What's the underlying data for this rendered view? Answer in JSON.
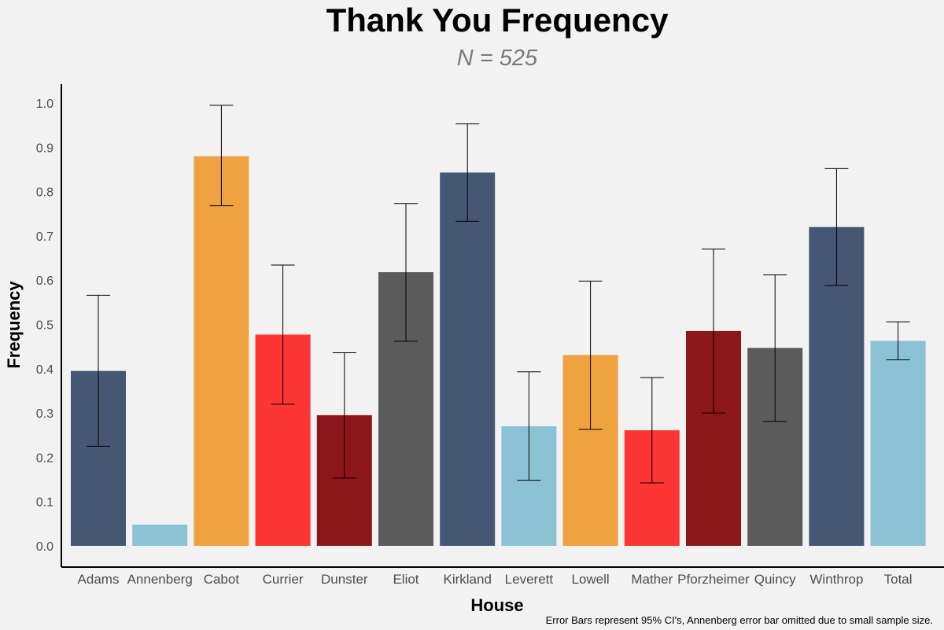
{
  "chart_data": {
    "type": "bar",
    "title": "Thank You Frequency",
    "subtitle": "N = 525",
    "xlabel": "House",
    "ylabel": "Frequency",
    "ylim": [
      0,
      1.0
    ],
    "yticks": [
      "0.0",
      "0.1",
      "0.2",
      "0.3",
      "0.4",
      "0.5",
      "0.6",
      "0.7",
      "0.8",
      "0.9",
      "1.0"
    ],
    "categories": [
      "Adams",
      "Annenberg",
      "Cabot",
      "Currier",
      "Dunster",
      "Eliot",
      "Kirkland",
      "Leverett",
      "Lowell",
      "Mather",
      "Pforzheimer",
      "Quincy",
      "Winthrop",
      "Total"
    ],
    "values": [
      0.395,
      0.048,
      0.88,
      0.477,
      0.295,
      0.618,
      0.843,
      0.27,
      0.431,
      0.261,
      0.485,
      0.447,
      0.72,
      0.463
    ],
    "error_low": [
      0.225,
      null,
      0.768,
      0.32,
      0.153,
      0.462,
      0.733,
      0.148,
      0.263,
      0.142,
      0.3,
      0.281,
      0.588,
      0.42
    ],
    "error_high": [
      0.566,
      null,
      0.995,
      0.634,
      0.436,
      0.773,
      0.953,
      0.393,
      0.598,
      0.38,
      0.67,
      0.612,
      0.852,
      0.506
    ],
    "colors": [
      "#465774",
      "#8bc2d4",
      "#eea240",
      "#fd3535",
      "#8c1619",
      "#5b5b5b",
      "#465774",
      "#8bc2d4",
      "#eea240",
      "#fd3535",
      "#8c1619",
      "#5b5b5b",
      "#465774",
      "#8bc2d4"
    ],
    "caption": "Error Bars represent 95% CI's, Annenberg error bar omitted due to small sample size."
  }
}
